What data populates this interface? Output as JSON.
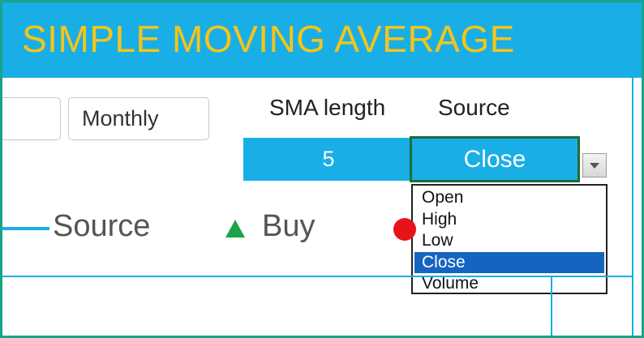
{
  "header": {
    "title": "SIMPLE MOVING AVERAGE"
  },
  "period_buttons": {
    "partial_label": "",
    "monthly_label": "Monthly"
  },
  "sma": {
    "label": "SMA length",
    "value": "5"
  },
  "source": {
    "label": "Source",
    "selected": "Close",
    "options": [
      "Open",
      "High",
      "Low",
      "Close",
      "Volume"
    ],
    "selected_index": 3
  },
  "legend": {
    "source_label": "Source",
    "buy_label": "Buy"
  },
  "colors": {
    "accent": "#1aaee6",
    "title": "#f5c518",
    "buy": "#1ba34a",
    "sell": "#e8121b",
    "selection": "#1565c0",
    "frame": "#17a589"
  }
}
